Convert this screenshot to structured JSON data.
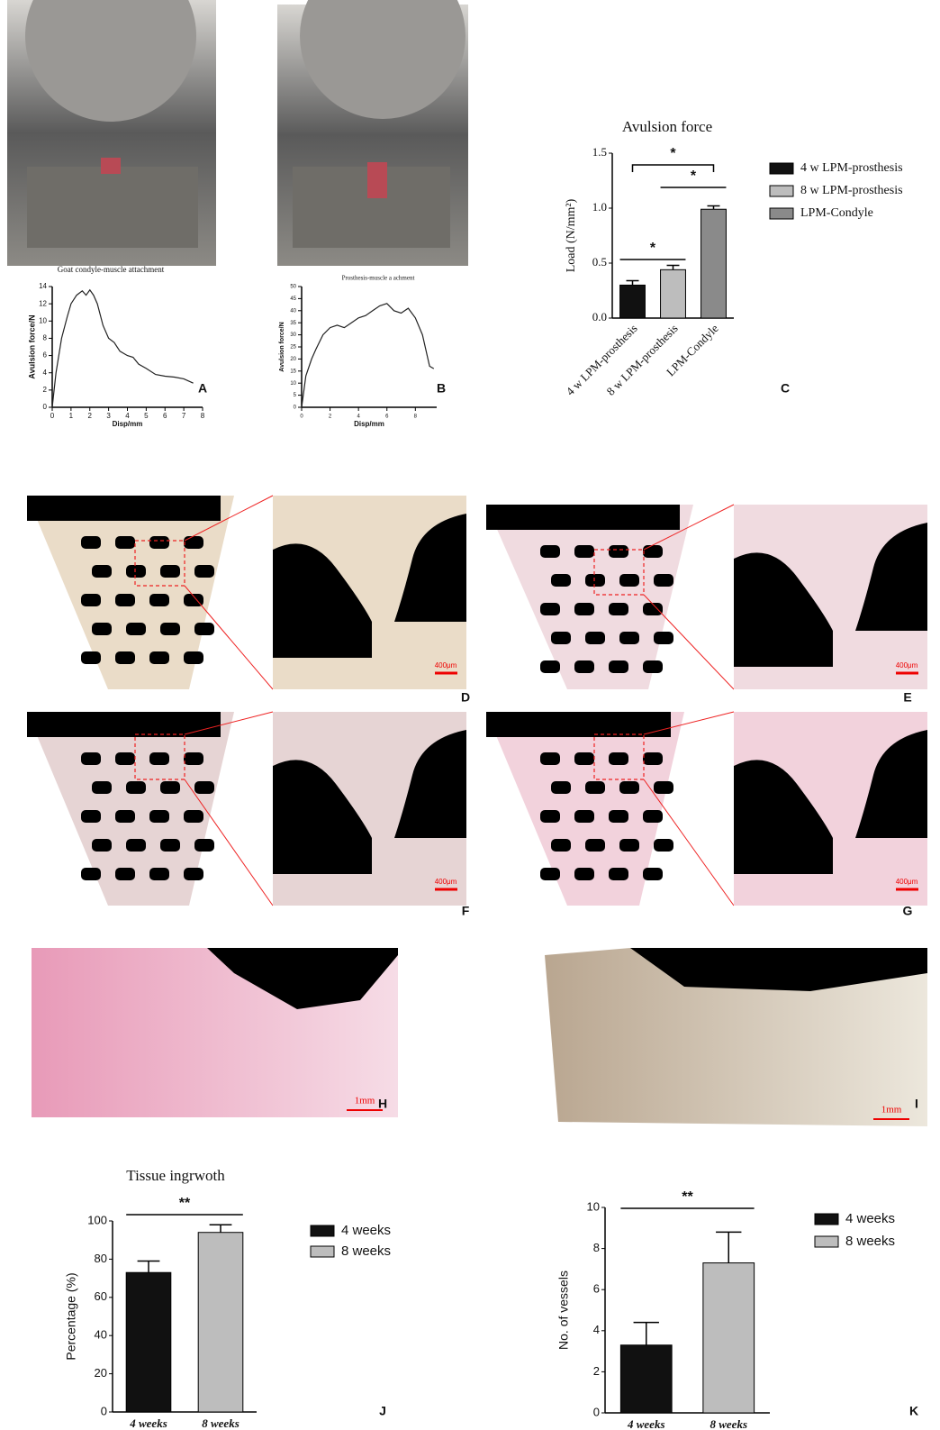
{
  "photo_captions": [
    "Goat condyle-muscle attachment",
    "Prosthesis-muscle a  achment"
  ],
  "panel_labels": [
    "A",
    "B",
    "C",
    "D",
    "E",
    "F",
    "G",
    "H",
    "I",
    "J",
    "K"
  ],
  "scale_labels": [
    "400μm",
    "400μm",
    "400μm",
    "400μm",
    "1mm",
    "1mm"
  ],
  "chart_data": [
    {
      "type": "line",
      "x_label": "Disp/mm",
      "y_label": "Avulsion force/N",
      "color": "#222222",
      "x": [
        0,
        0.2,
        0.5,
        0.8,
        1,
        1.3,
        1.6,
        1.8,
        2,
        2.2,
        2.4,
        2.7,
        3,
        3.3,
        3.6,
        4,
        4.3,
        4.6,
        5,
        5.5,
        6,
        6.5,
        7,
        7.5
      ],
      "values": [
        0,
        4,
        8,
        10.5,
        12,
        13,
        13.5,
        13,
        13.6,
        13,
        12,
        9.5,
        8,
        7.5,
        6.5,
        6,
        5.8,
        5,
        4.5,
        3.8,
        3.6,
        3.5,
        3.3,
        2.8
      ],
      "xlim": [
        0,
        8
      ],
      "xticks": [
        0,
        1,
        2,
        3,
        4,
        5,
        6,
        7,
        8
      ],
      "ylim": [
        0,
        14
      ],
      "yticks": [
        0,
        2,
        4,
        6,
        8,
        10,
        12,
        14
      ]
    },
    {
      "type": "line",
      "x_label": "Disp/mm",
      "y_label": "Avulsion force/N",
      "color": "#222222",
      "x": [
        0,
        0.3,
        0.7,
        1,
        1.5,
        2,
        2.5,
        3,
        3.5,
        4,
        4.5,
        5,
        5.5,
        6,
        6.5,
        7,
        7.5,
        8,
        8.5,
        9,
        9.3
      ],
      "values": [
        0,
        13,
        20,
        24,
        30,
        33,
        34,
        33,
        35,
        37,
        38,
        40,
        42,
        43,
        40,
        39,
        41,
        37,
        30,
        17,
        16
      ],
      "xlim": [
        0,
        9.5
      ],
      "xticks": [
        0,
        2,
        4,
        6,
        8
      ],
      "ylim": [
        0,
        50
      ],
      "yticks": [
        0,
        5,
        10,
        15,
        20,
        25,
        30,
        35,
        40,
        45,
        50
      ]
    },
    {
      "type": "bar",
      "title": "Avulsion force",
      "y_label": "Load (N/mm²)",
      "categories": [
        "4 w LPM-prosthesis",
        "8 w LPM-prosthesis",
        "LPM-Condyle"
      ],
      "values": [
        0.3,
        0.44,
        0.99
      ],
      "errors": [
        0.04,
        0.04,
        0.03
      ],
      "colors": [
        "#111111",
        "#bdbdbd",
        "#8a8a8a"
      ],
      "ylim": [
        0,
        1.5
      ],
      "yticks": [
        {
          "value": 0,
          "label": "0.0"
        },
        0.5,
        {
          "value": 1,
          "label": "1.0"
        },
        1.5
      ],
      "annotations": [
        "*",
        "*",
        "*"
      ]
    },
    {
      "type": "bar",
      "title": "Tissue ingrwoth",
      "y_label": "Percentage (%)",
      "categories": [
        "4 weeks",
        "8 weeks"
      ],
      "values": [
        73,
        94
      ],
      "errors": [
        6,
        4
      ],
      "colors": [
        "#111111",
        "#bdbdbd"
      ],
      "ylim": [
        0,
        100
      ],
      "yticks": [
        0,
        20,
        40,
        60,
        80,
        100
      ],
      "annotations": [
        "**"
      ]
    },
    {
      "type": "bar",
      "y_label": "No. of vessels",
      "categories": [
        "4 weeks",
        "8 weeks"
      ],
      "values": [
        3.3,
        7.3
      ],
      "errors": [
        1.1,
        1.5
      ],
      "colors": [
        "#111111",
        "#bdbdbd"
      ],
      "ylim": [
        0,
        10
      ],
      "yticks": [
        0,
        2,
        4,
        6,
        8,
        10
      ],
      "annotations": [
        "**"
      ]
    }
  ]
}
